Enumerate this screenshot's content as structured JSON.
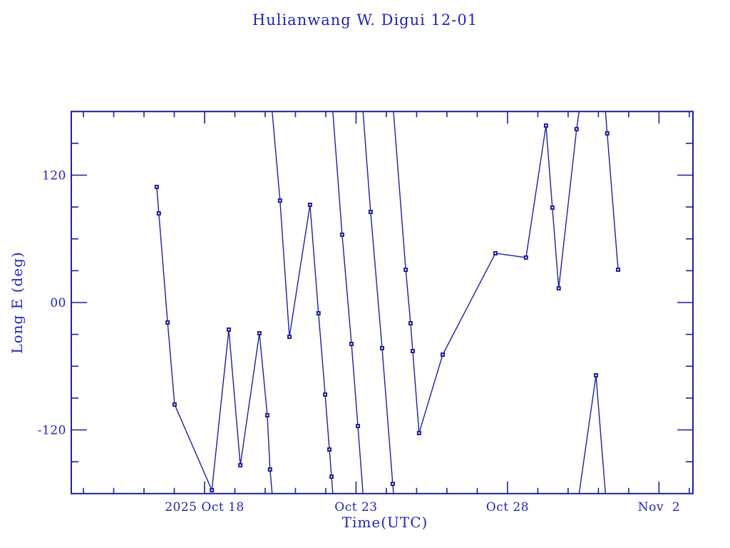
{
  "page": {
    "background": "#ffffff"
  },
  "chart_data": {
    "type": "line",
    "title": "Hulianwang W. Digui 12-01",
    "xlabel": "Time(UTC)",
    "ylabel": "Long E (deg)",
    "grid": false,
    "legend_position": "none",
    "x_axis": {
      "unit": "days relative to 2025 Oct 18 00:00 UTC",
      "min": -4.4,
      "max": 16.12,
      "minor_step_days": 1,
      "major_ticks": [
        {
          "t": 0,
          "label": "2025 Oct 18"
        },
        {
          "t": 5,
          "label": "Oct 23"
        },
        {
          "t": 10,
          "label": "Oct 28"
        },
        {
          "t": 15,
          "label": "Nov  2"
        }
      ]
    },
    "y_axis": {
      "min": -180,
      "max": 180,
      "minor_step_deg": 30,
      "major_ticks": [
        {
          "v": 120,
          "label": "120"
        },
        {
          "v": 0,
          "label": "00"
        },
        {
          "v": -120,
          "label": "-120"
        }
      ]
    },
    "wrap_longitude_at": 180,
    "series": [
      {
        "name": "Long E (deg)",
        "marker": "open-square",
        "points": [
          [
            -1.58,
            108.9
          ],
          [
            -1.51,
            84.0
          ],
          [
            -1.22,
            -18.8
          ],
          [
            -0.99,
            -96.1
          ],
          [
            0.24,
            -176.8
          ],
          [
            0.8,
            -25.5
          ],
          [
            1.18,
            -153.3
          ],
          [
            1.81,
            -28.9
          ],
          [
            2.07,
            -106.2
          ],
          [
            2.16,
            -157.3
          ],
          [
            2.49,
            96.1
          ],
          [
            2.8,
            -32.3
          ],
          [
            3.48,
            92.1
          ],
          [
            3.76,
            -10.1
          ],
          [
            3.98,
            -86.7
          ],
          [
            4.12,
            -138.5
          ],
          [
            4.19,
            -164.0
          ],
          [
            4.54,
            63.9
          ],
          [
            4.85,
            -39.0
          ],
          [
            5.06,
            -116.3
          ],
          [
            5.48,
            85.4
          ],
          [
            5.86,
            -43.0
          ],
          [
            6.21,
            -170.8
          ],
          [
            6.64,
            30.9
          ],
          [
            6.8,
            -19.5
          ],
          [
            6.87,
            -45.7
          ],
          [
            7.08,
            -123.0
          ],
          [
            7.86,
            -49.1
          ],
          [
            9.6,
            46.4
          ],
          [
            10.61,
            42.4
          ],
          [
            11.27,
            166.7
          ],
          [
            11.48,
            89.4
          ],
          [
            11.69,
            13.4
          ],
          [
            12.28,
            163.4
          ],
          [
            12.92,
            -68.6
          ],
          [
            13.29,
            159.4
          ],
          [
            13.65,
            30.9
          ]
        ]
      }
    ],
    "colors": {
      "line": "#1f1f9f",
      "marker": "#1f1f9f",
      "marker_center": "#ffffff",
      "frame": "#1f1f9f",
      "text": "#2222bb",
      "background": "#ffffff"
    }
  }
}
